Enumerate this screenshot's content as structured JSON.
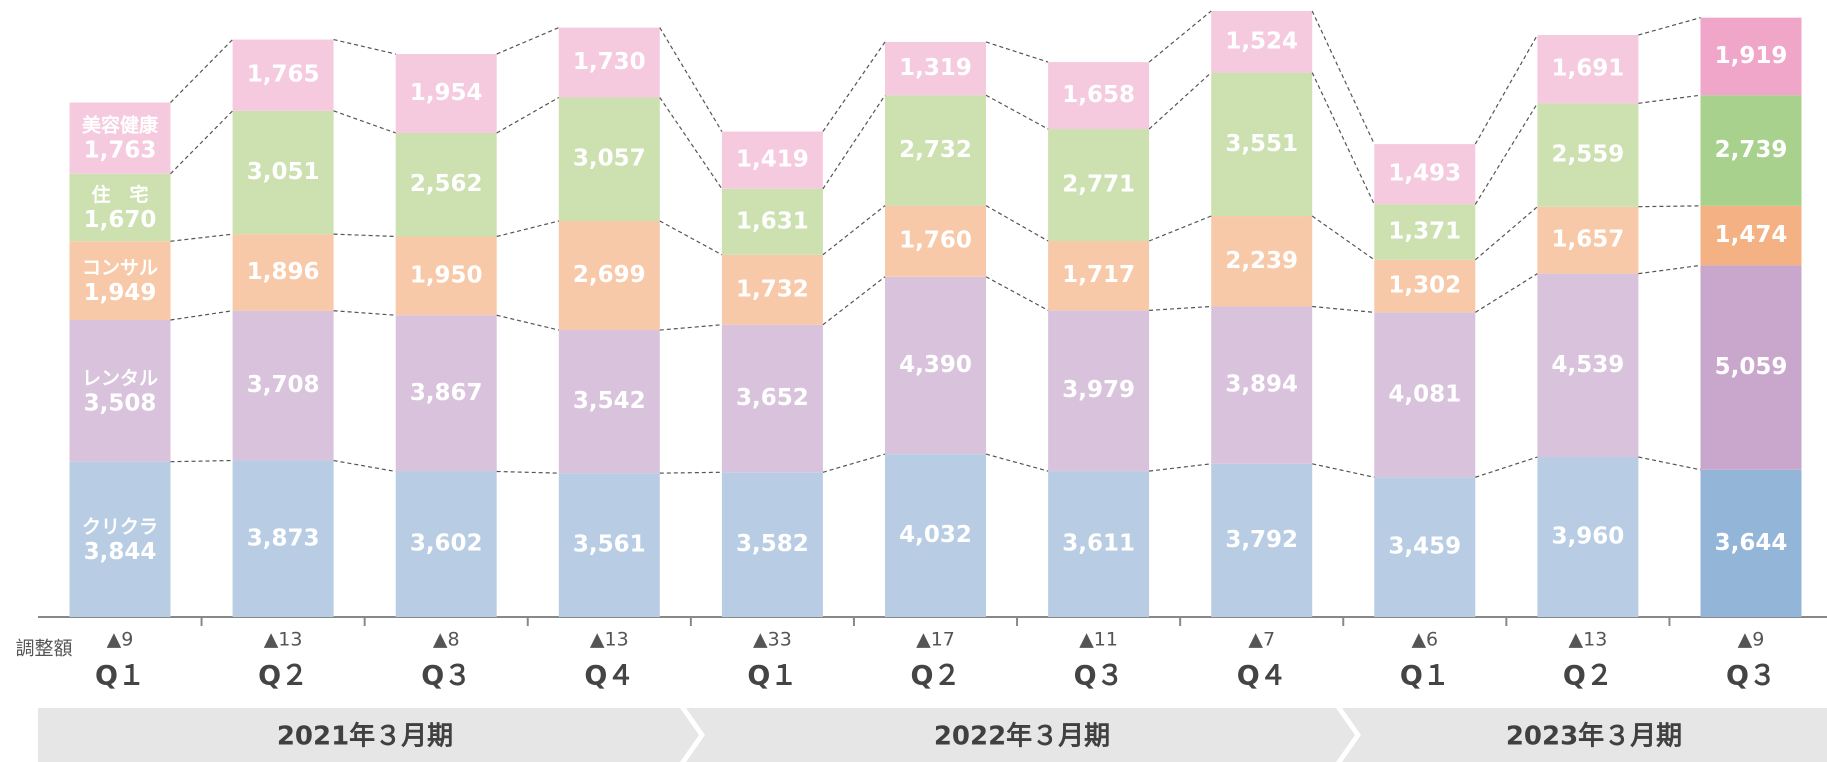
{
  "chart_data": {
    "type": "stacked_bar",
    "categories": [
      "Q１",
      "Q２",
      "Q３",
      "Q４",
      "Q１",
      "Q２",
      "Q３",
      "Q４",
      "Q１",
      "Q２",
      "Q３"
    ],
    "adjustment_label": "調整額",
    "adjustments": [
      "▲9",
      "▲13",
      "▲8",
      "▲13",
      "▲33",
      "▲17",
      "▲11",
      "▲7",
      "▲6",
      "▲13",
      "▲9"
    ],
    "periods": [
      "2021年３月期",
      "2022年３月期",
      "2023年３月期"
    ],
    "series": [
      {
        "name": "クリクラ",
        "colors": [
          "#b8cde4",
          "#b8cde4",
          "#b8cde4",
          "#b8cde4",
          "#b8cde4",
          "#b8cde4",
          "#b8cde4",
          "#b8cde4",
          "#b8cde4",
          "#b8cde4",
          "#93b5d8"
        ],
        "values": [
          3844,
          3873,
          3602,
          3561,
          3582,
          4032,
          3611,
          3792,
          3459,
          3960,
          3644
        ],
        "value_labels": [
          "3,844",
          "3,873",
          "3,602",
          "3,561",
          "3,582",
          "4,032",
          "3,611",
          "3,792",
          "3,459",
          "3,960",
          "3,644"
        ]
      },
      {
        "name": "レンタル",
        "colors": [
          "#d9c3dc",
          "#d9c3dc",
          "#d9c3dc",
          "#d9c3dc",
          "#d9c3dc",
          "#d9c3dc",
          "#d9c3dc",
          "#d9c3dc",
          "#d9c3dc",
          "#d9c3dc",
          "#c9a6cb"
        ],
        "values": [
          3508,
          3708,
          3867,
          3542,
          3652,
          4390,
          3979,
          3894,
          4081,
          4539,
          5059
        ],
        "value_labels": [
          "3,508",
          "3,708",
          "3,867",
          "3,542",
          "3,652",
          "4,390",
          "3,979",
          "3,894",
          "4,081",
          "4,539",
          "5,059"
        ]
      },
      {
        "name": "コンサル",
        "colors": [
          "#f8c9a8",
          "#f8c9a8",
          "#f8c9a8",
          "#f8c9a8",
          "#f8c9a8",
          "#f8c9a8",
          "#f8c9a8",
          "#f8c9a8",
          "#f8c9a8",
          "#f8c9a8",
          "#f4b183"
        ],
        "values": [
          1949,
          1896,
          1950,
          2699,
          1732,
          1760,
          1717,
          2239,
          1302,
          1657,
          1474
        ],
        "value_labels": [
          "1,949",
          "1,896",
          "1,950",
          "2,699",
          "1,732",
          "1,760",
          "1,717",
          "2,239",
          "1,302",
          "1,657",
          "1,474"
        ]
      },
      {
        "name": "住　宅",
        "colors": [
          "#cde0b0",
          "#cde0b0",
          "#cde0b0",
          "#cde0b0",
          "#cde0b0",
          "#cde0b0",
          "#cde0b0",
          "#cde0b0",
          "#cde0b0",
          "#cde0b0",
          "#a9d18e"
        ],
        "values": [
          1670,
          3051,
          2562,
          3057,
          1631,
          2732,
          2771,
          3551,
          1371,
          2559,
          2739
        ],
        "value_labels": [
          "1,670",
          "3,051",
          "2,562",
          "3,057",
          "1,631",
          "2,732",
          "2,771",
          "3,551",
          "1,371",
          "2,559",
          "2,739"
        ]
      },
      {
        "name": "美容健康",
        "colors": [
          "#f5cadf",
          "#f5cadf",
          "#f5cadf",
          "#f5cadf",
          "#f5cadf",
          "#f5cadf",
          "#f5cadf",
          "#f5cadf",
          "#f5cadf",
          "#f5cadf",
          "#f0a6c9"
        ],
        "values": [
          1763,
          1765,
          1954,
          1730,
          1419,
          1319,
          1658,
          1524,
          1493,
          1691,
          1919
        ],
        "value_labels": [
          "1,763",
          "1,765",
          "1,954",
          "1,730",
          "1,419",
          "1,319",
          "1,658",
          "1,524",
          "1,493",
          "1,691",
          "1,919"
        ]
      }
    ]
  }
}
